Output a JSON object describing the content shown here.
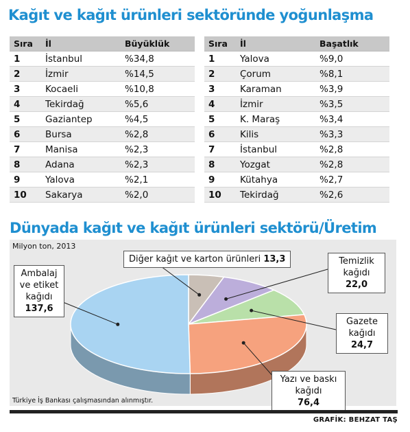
{
  "top_title": "Kağıt ve kağıt ürünleri sektöründe yoğunlaşma",
  "left_table": {
    "headers": [
      "Sıra",
      "İl",
      "Büyüklük"
    ],
    "rows": [
      [
        "1",
        "İstanbul",
        "%34,8"
      ],
      [
        "2",
        "İzmir",
        "%14,5"
      ],
      [
        "3",
        "Kocaeli",
        "%10,8"
      ],
      [
        "4",
        "Tekirdağ",
        "%5,6"
      ],
      [
        "5",
        "Gaziantep",
        "%4,5"
      ],
      [
        "6",
        "Bursa",
        "%2,8"
      ],
      [
        "7",
        "Manisa",
        "%2,3"
      ],
      [
        "8",
        "Adana",
        "%2,3"
      ],
      [
        "9",
        "Yalova",
        "%2,1"
      ],
      [
        "10",
        "Sakarya",
        "%2,0"
      ]
    ]
  },
  "right_table": {
    "headers": [
      "Sıra",
      "İl",
      "Başatlık"
    ],
    "rows": [
      [
        "1",
        "Yalova",
        "%9,0"
      ],
      [
        "2",
        "Çorum",
        "%8,1"
      ],
      [
        "3",
        "Karaman",
        "%3,9"
      ],
      [
        "4",
        "İzmir",
        "%3,5"
      ],
      [
        "5",
        "K. Maraş",
        "%3,4"
      ],
      [
        "6",
        "Kilis",
        "%3,3"
      ],
      [
        "7",
        "İstanbul",
        "%2,8"
      ],
      [
        "8",
        "Yozgat",
        "%2,8"
      ],
      [
        "9",
        "Kütahya",
        "%2,7"
      ],
      [
        "10",
        "Tekirdağ",
        "%2,6"
      ]
    ]
  },
  "chart_data": {
    "type": "pie",
    "title": "Dünyada kağıt ve kağıt ürünleri sektörü/Üretim",
    "subtitle": "Milyon ton, 2013",
    "slices": [
      {
        "label": "Ambalaj ve etiket kağıdı",
        "value": 137.6,
        "value_text": "137,6",
        "color": "#a9d4f2"
      },
      {
        "label": "Diğer kağıt ve karton ürünleri",
        "value": 13.3,
        "value_text": "13,3",
        "color": "#c9bfb6"
      },
      {
        "label": "Temizlik kağıdı",
        "value": 22.0,
        "value_text": "22,0",
        "color": "#bcaedb"
      },
      {
        "label": "Gazete kağıdı",
        "value": 24.7,
        "value_text": "24,7",
        "color": "#b9e0a9"
      },
      {
        "label": "Yazı ve baskı kağıdı",
        "value": 76.4,
        "value_text": "76,4",
        "color": "#f6a27e"
      }
    ],
    "source": "Türkiye İş Bankası çalışmasından alınmıştır."
  },
  "credit": "GRAFİK: BEHZAT TAŞ"
}
